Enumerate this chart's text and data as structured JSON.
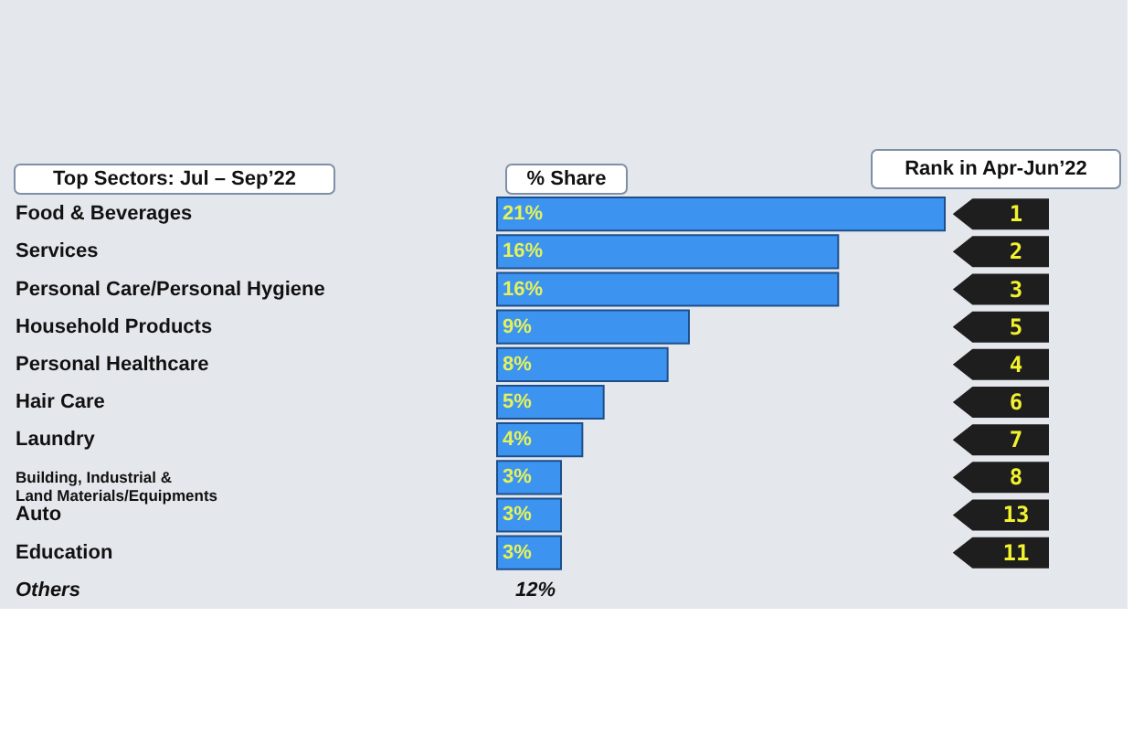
{
  "chart_data": {
    "type": "bar",
    "orientation": "horizontal",
    "ylabel": "Top Sectors: Jul – Sep’22",
    "xlabel": "% Share",
    "categories": [
      "Food & Beverages",
      "Services",
      "Personal Care/Personal Hygiene",
      "Household Products",
      "Personal Healthcare",
      "Hair Care",
      "Laundry",
      "Building, Industrial &\nLand Materials/Equipments",
      "Auto",
      "Education",
      "Others"
    ],
    "values": [
      21,
      16,
      16,
      9,
      8,
      5,
      4,
      3,
      3,
      3,
      null
    ],
    "value_labels": [
      "21%",
      "16%",
      "16%",
      "9%",
      "8%",
      "5%",
      "4%",
      "3%",
      "3%",
      "3%",
      "12%"
    ],
    "color": "#3d94f0",
    "annotations": [
      "Rank in Apr-Jun’22",
      "1",
      "2",
      "3",
      "5",
      "4",
      "6",
      "7",
      "8",
      "13",
      "11"
    ],
    "grid": false
  }
}
